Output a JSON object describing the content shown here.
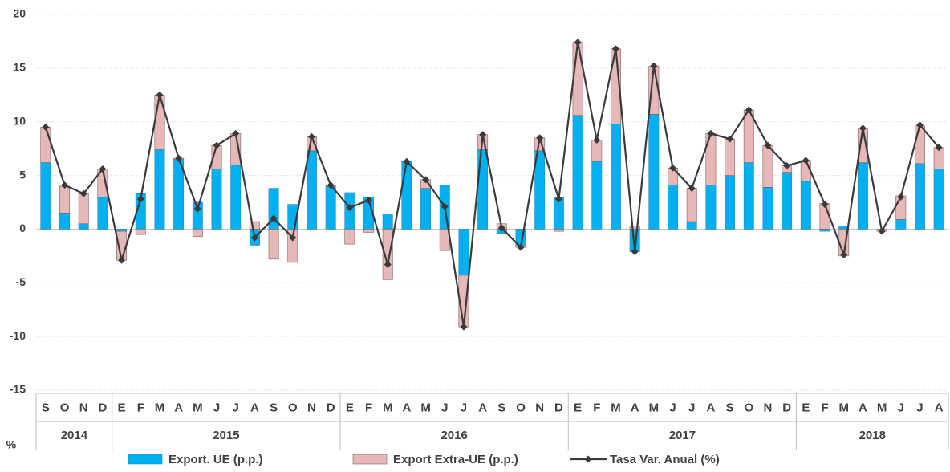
{
  "chart_data": {
    "type": "stacked-bar-line",
    "categories": [
      "S",
      "O",
      "N",
      "D",
      "E",
      "F",
      "M",
      "A",
      "M",
      "J",
      "J",
      "A",
      "S",
      "O",
      "N",
      "D",
      "E",
      "F",
      "M",
      "A",
      "M",
      "J",
      "J",
      "A",
      "S",
      "O",
      "N",
      "D",
      "E",
      "F",
      "M",
      "A",
      "M",
      "J",
      "J",
      "A",
      "S",
      "O",
      "N",
      "D",
      "E",
      "F",
      "M",
      "A",
      "M",
      "J",
      "J",
      "A"
    ],
    "years": [
      "2014",
      "2015",
      "2016",
      "2017",
      "2018"
    ],
    "y_unit": "%",
    "ylim": [
      -15,
      20
    ],
    "yticks": [
      -15,
      -10,
      -5,
      0,
      5,
      10,
      15,
      20
    ],
    "grid": true,
    "series": [
      {
        "name": "Export. UE (p.p.)",
        "kind": "bar",
        "color": "#00b0f0",
        "values": [
          6.2,
          1.5,
          0.5,
          3.0,
          -0.2,
          3.3,
          7.4,
          6.5,
          2.5,
          5.6,
          6.0,
          -1.5,
          3.8,
          2.3,
          7.3,
          4.0,
          3.4,
          3.0,
          1.4,
          6.3,
          3.8,
          4.1,
          -4.3,
          7.4,
          -0.4,
          -1.5,
          7.3,
          3.0,
          10.6,
          6.3,
          9.8,
          -2.1,
          10.7,
          4.1,
          0.7,
          4.1,
          5.0,
          6.2,
          3.9,
          5.3,
          4.5,
          -0.2,
          0.3,
          6.2,
          0.0,
          0.9,
          6.1,
          5.6
        ]
      },
      {
        "name": "Export Extra-UE (p.p.)",
        "kind": "bar",
        "color": "#e6b9b8",
        "values": [
          3.3,
          2.5,
          2.8,
          2.6,
          -2.7,
          -0.5,
          5.1,
          0.1,
          -0.7,
          2.2,
          2.9,
          0.7,
          -2.8,
          -3.1,
          1.3,
          0.1,
          -1.4,
          -0.3,
          -4.7,
          0.0,
          0.8,
          -2.0,
          -4.8,
          1.4,
          0.5,
          -0.2,
          1.2,
          -0.2,
          6.8,
          2.0,
          7.0,
          0.3,
          4.5,
          1.6,
          3.1,
          4.8,
          3.4,
          4.9,
          3.9,
          0.6,
          1.9,
          2.4,
          -2.5,
          3.2,
          -0.2,
          2.2,
          3.5,
          2.0
        ]
      },
      {
        "name": "Tasa Var. Anual (%)",
        "kind": "line",
        "color": "#3a3a3a",
        "values": [
          9.5,
          4.1,
          3.3,
          5.6,
          -2.9,
          2.8,
          12.5,
          6.6,
          1.9,
          7.8,
          8.9,
          -0.8,
          1.0,
          -0.8,
          8.6,
          4.1,
          2.0,
          2.7,
          -3.3,
          6.3,
          4.6,
          2.1,
          -9.1,
          8.8,
          0.1,
          -1.7,
          8.5,
          2.8,
          17.4,
          8.3,
          16.8,
          -2.1,
          15.2,
          5.7,
          3.8,
          8.9,
          8.4,
          11.1,
          7.8,
          5.9,
          6.4,
          2.3,
          -2.4,
          9.4,
          -0.2,
          3.0,
          9.7,
          7.6
        ]
      }
    ]
  }
}
